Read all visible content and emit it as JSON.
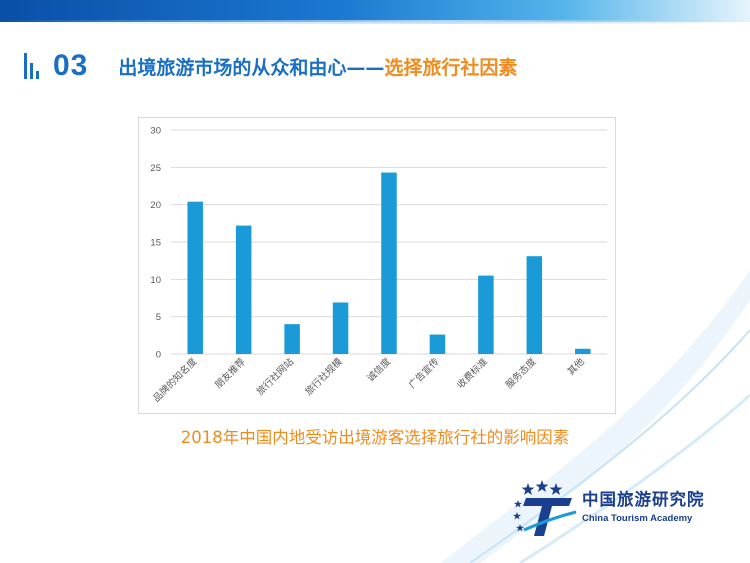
{
  "header": {
    "section_number": "03",
    "title_main": "出境旅游市场的从众和由心——",
    "title_accent": "选择旅行社因素"
  },
  "chart_data": {
    "type": "bar",
    "categories": [
      "品牌的知名度",
      "朋友推荐",
      "旅行社网站",
      "旅行社规模",
      "诚信度",
      "广告宣传",
      "收费标准",
      "服务态度",
      "其他"
    ],
    "values": [
      20.4,
      17.2,
      4.0,
      6.9,
      24.3,
      2.6,
      10.5,
      13.1,
      0.7
    ],
    "ylim": [
      0,
      30
    ],
    "yticks": [
      0,
      5,
      10,
      15,
      20,
      25,
      30
    ],
    "grid": true,
    "bar_color": "#1a9bd7"
  },
  "caption": "2018年中国内地受访出境游客选择旅行社的影响因素",
  "logo": {
    "name_cn": "中国旅游研究院",
    "name_en": "China Tourism Academy"
  }
}
